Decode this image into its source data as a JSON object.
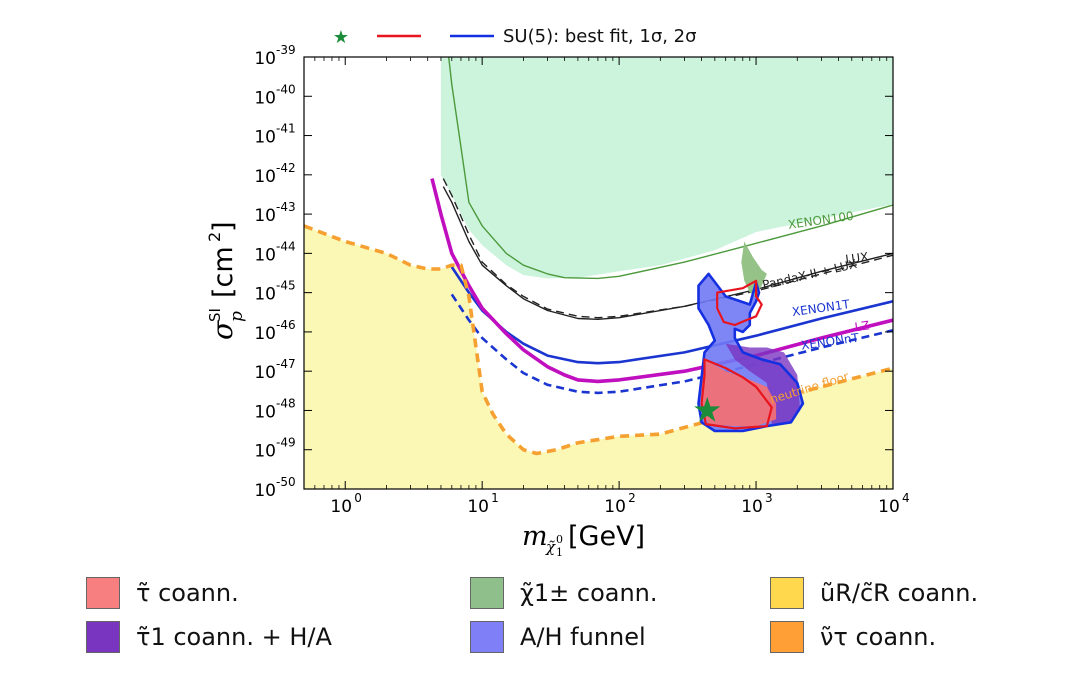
{
  "chart_data": {
    "type": "line",
    "xscale": "log",
    "yscale": "log",
    "xlim": [
      0.5,
      10000
    ],
    "ylim": [
      1e-50,
      1e-39
    ],
    "xlabel": "m_χ̃₁⁰ [GeV]",
    "ylabel": "σ_p^SI [cm²]",
    "x_ticks": [
      1,
      10,
      100,
      1000,
      10000
    ],
    "x_tick_labels": [
      {
        "base": "10",
        "exp": "0"
      },
      {
        "base": "10",
        "exp": "1"
      },
      {
        "base": "10",
        "exp": "2"
      },
      {
        "base": "10",
        "exp": "3"
      },
      {
        "base": "10",
        "exp": "4"
      }
    ],
    "y_ticks": [
      1e-39,
      1e-40,
      1e-41,
      1e-42,
      1e-43,
      1e-44,
      1e-45,
      1e-46,
      1e-47,
      1e-48,
      1e-49,
      1e-50
    ],
    "y_tick_labels": [
      {
        "base": "10",
        "exp": "-39"
      },
      {
        "base": "10",
        "exp": "-40"
      },
      {
        "base": "10",
        "exp": "-41"
      },
      {
        "base": "10",
        "exp": "-42"
      },
      {
        "base": "10",
        "exp": "-43"
      },
      {
        "base": "10",
        "exp": "-44"
      },
      {
        "base": "10",
        "exp": "-45"
      },
      {
        "base": "10",
        "exp": "-46"
      },
      {
        "base": "10",
        "exp": "-47"
      },
      {
        "base": "10",
        "exp": "-48"
      },
      {
        "base": "10",
        "exp": "-49"
      },
      {
        "base": "10",
        "exp": "-50"
      }
    ],
    "top_legend": {
      "label": "SU(5): best fit, 1σ, 2σ",
      "marker_color": "#1a8c3a",
      "line1_color": "#e8141e",
      "line2_color": "#1530e0"
    },
    "regions": [
      {
        "name": "excluded-region",
        "color": "#ccf3dc",
        "points": [
          [
            5,
            1e-39
          ],
          [
            10000,
            1e-39
          ],
          [
            10000,
            1.8e-43
          ],
          [
            1000,
            3.5e-44
          ],
          [
            500,
            1.2e-44
          ],
          [
            200,
            5e-45
          ],
          [
            100,
            3.5e-45
          ],
          [
            50,
            2.4e-45
          ],
          [
            30,
            2.3e-45
          ],
          [
            20,
            2.8e-45
          ],
          [
            15,
            5e-45
          ],
          [
            10,
            1.6e-44
          ],
          [
            8,
            4e-44
          ],
          [
            7,
            1e-43
          ],
          [
            6,
            3e-43
          ],
          [
            5,
            1e-42
          ]
        ]
      },
      {
        "name": "neutrino-floor-region",
        "color": "#fbf8b6",
        "points": [
          [
            0.5,
            5e-44
          ],
          [
            1,
            2e-44
          ],
          [
            2,
            1e-44
          ],
          [
            3,
            5e-45
          ],
          [
            4,
            4e-45
          ],
          [
            5,
            4e-45
          ],
          [
            6,
            5e-45
          ],
          [
            7,
            5e-45
          ],
          [
            8,
            8e-46
          ],
          [
            10,
            3e-48
          ],
          [
            12,
            8e-49
          ],
          [
            15,
            2.5e-49
          ],
          [
            20,
            1e-49
          ],
          [
            25,
            8e-50
          ],
          [
            35,
            1e-49
          ],
          [
            50,
            1.5e-49
          ],
          [
            100,
            2.2e-49
          ],
          [
            200,
            2.5e-49
          ],
          [
            500,
            6e-49
          ],
          [
            1000,
            1.5e-48
          ],
          [
            3000,
            4e-48
          ],
          [
            10000,
            1.2e-47
          ],
          [
            10000,
            1e-50
          ],
          [
            0.5,
            1e-50
          ]
        ]
      }
    ],
    "series": [
      {
        "name": "XENON100",
        "color": "#4c9a3c",
        "dash": "solid",
        "points": [
          [
            5.7,
            1e-39
          ],
          [
            6,
            2e-40
          ],
          [
            7,
            5e-42
          ],
          [
            8,
            2e-43
          ],
          [
            10,
            5e-44
          ],
          [
            15,
            1e-44
          ],
          [
            20,
            5e-45
          ],
          [
            30,
            3e-45
          ],
          [
            40,
            2.4e-45
          ],
          [
            70,
            2.3e-45
          ],
          [
            100,
            2.6e-45
          ],
          [
            300,
            6e-45
          ],
          [
            1000,
            1.8e-44
          ],
          [
            3000,
            5e-44
          ],
          [
            10000,
            1.7e-43
          ]
        ]
      },
      {
        "name": "LUX",
        "color": "#222222",
        "dash": "solid",
        "points": [
          [
            5.2,
            5e-43
          ],
          [
            6,
            2e-43
          ],
          [
            8,
            2e-44
          ],
          [
            10,
            5e-45
          ],
          [
            15,
            1.5e-45
          ],
          [
            20,
            7e-46
          ],
          [
            30,
            3.5e-46
          ],
          [
            50,
            2.2e-46
          ],
          [
            70,
            2.1e-46
          ],
          [
            100,
            2.3e-46
          ],
          [
            300,
            4.5e-46
          ],
          [
            1000,
            1.2e-45
          ],
          [
            3000,
            3.5e-45
          ],
          [
            10000,
            1e-44
          ]
        ]
      },
      {
        "name": "PandaX-II + LUX",
        "color": "#222222",
        "dash": "dashed",
        "points": [
          [
            5.2,
            8e-43
          ],
          [
            6,
            3e-43
          ],
          [
            8,
            3e-44
          ],
          [
            10,
            6e-45
          ],
          [
            15,
            1.6e-45
          ],
          [
            20,
            8e-46
          ],
          [
            30,
            3.8e-46
          ],
          [
            50,
            2.5e-46
          ],
          [
            70,
            2.3e-46
          ],
          [
            100,
            2.5e-46
          ],
          [
            300,
            4.5e-46
          ],
          [
            1000,
            1.1e-45
          ],
          [
            3000,
            3e-45
          ],
          [
            10000,
            9e-45
          ]
        ]
      },
      {
        "name": "XENON1T",
        "color": "#1a35d0",
        "dash": "solid",
        "points": [
          [
            6,
            4.5e-45
          ],
          [
            8,
            1e-45
          ],
          [
            10,
            3.5e-46
          ],
          [
            15,
            1e-46
          ],
          [
            20,
            5e-47
          ],
          [
            30,
            2.5e-47
          ],
          [
            50,
            1.7e-47
          ],
          [
            70,
            1.6e-47
          ],
          [
            100,
            1.7e-47
          ],
          [
            300,
            3e-47
          ],
          [
            1000,
            8e-47
          ],
          [
            3000,
            2.2e-46
          ],
          [
            10000,
            6e-46
          ]
        ]
      },
      {
        "name": "LZ",
        "color": "#c00fbf",
        "dash": "solid",
        "points": [
          [
            4.3,
            8e-43
          ],
          [
            5,
            1e-43
          ],
          [
            6,
            1e-44
          ],
          [
            8,
            1.5e-45
          ],
          [
            10,
            4e-46
          ],
          [
            15,
            9e-47
          ],
          [
            20,
            3.5e-47
          ],
          [
            30,
            1.3e-47
          ],
          [
            40,
            8e-48
          ],
          [
            50,
            6e-48
          ],
          [
            70,
            5.5e-48
          ],
          [
            100,
            6e-48
          ],
          [
            300,
            1e-47
          ],
          [
            1000,
            2.5e-47
          ],
          [
            3000,
            7e-47
          ],
          [
            10000,
            2e-46
          ]
        ]
      },
      {
        "name": "XENONnT",
        "color": "#1a35d0",
        "dash": "dashed",
        "points": [
          [
            6,
            9e-46
          ],
          [
            8,
            2e-46
          ],
          [
            10,
            7e-47
          ],
          [
            15,
            2e-47
          ],
          [
            20,
            9e-48
          ],
          [
            30,
            4.5e-48
          ],
          [
            50,
            3e-48
          ],
          [
            70,
            2.8e-48
          ],
          [
            100,
            3e-48
          ],
          [
            300,
            5.5e-48
          ],
          [
            1000,
            1.5e-47
          ],
          [
            3000,
            4e-47
          ],
          [
            10000,
            1.1e-46
          ]
        ]
      },
      {
        "name": "neutrino floor",
        "color": "#f5a030",
        "dash": "dashed",
        "points": [
          [
            0.5,
            5e-44
          ],
          [
            1,
            2e-44
          ],
          [
            2,
            1e-44
          ],
          [
            3,
            5e-45
          ],
          [
            4,
            4e-45
          ],
          [
            5,
            4e-45
          ],
          [
            6,
            5e-45
          ],
          [
            7,
            5e-45
          ],
          [
            8,
            8e-46
          ],
          [
            10,
            3e-48
          ],
          [
            12,
            8e-49
          ],
          [
            15,
            2.5e-49
          ],
          [
            20,
            1e-49
          ],
          [
            25,
            8e-50
          ],
          [
            35,
            1e-49
          ],
          [
            50,
            1.5e-49
          ],
          [
            100,
            2.2e-49
          ],
          [
            200,
            2.5e-49
          ],
          [
            500,
            6e-49
          ],
          [
            1000,
            1.5e-48
          ],
          [
            3000,
            4e-48
          ],
          [
            10000,
            1.2e-47
          ]
        ]
      }
    ],
    "curve_labels": [
      {
        "series": "XENON100",
        "text": "XENON100",
        "x": 3000,
        "y": 5.5e-44,
        "color": "#4c9a3c",
        "rotate": -8
      },
      {
        "series": "LUX",
        "text": "LUX",
        "x": 5500,
        "y": 6e-45,
        "color": "#222222",
        "rotate": -8
      },
      {
        "series": "PandaX-II + LUX",
        "text": "PandaX-II + LUX",
        "x": 2500,
        "y": 2.3e-45,
        "color": "#222222",
        "rotate": -13
      },
      {
        "series": "XENON1T",
        "text": "XENON1T",
        "x": 3000,
        "y": 3.2e-46,
        "color": "#1a35d0",
        "rotate": -8
      },
      {
        "series": "LZ",
        "text": "LZ",
        "x": 6000,
        "y": 1.1e-46,
        "color": "#c00fbf",
        "rotate": -8
      },
      {
        "series": "XENONnT",
        "text": "XENONnT",
        "x": 3500,
        "y": 4.5e-47,
        "color": "#1a35d0",
        "rotate": -8
      },
      {
        "series": "neutrino floor",
        "text": "neutrino floor",
        "x": 2500,
        "y": 3e-48,
        "color": "#f5a030",
        "rotate": -17
      }
    ],
    "fit_blobs": {
      "A/H funnel": {
        "color": "#7079f5",
        "opacity": 0.9,
        "points": [
          [
            450,
            3e-45
          ],
          [
            600,
            8e-46
          ],
          [
            900,
            5e-46
          ],
          [
            1000,
            1.8e-45
          ],
          [
            1050,
            1e-45
          ],
          [
            1000,
            6e-46
          ],
          [
            900,
            3e-46
          ],
          [
            900,
            1.5e-46
          ],
          [
            800,
            1e-46
          ],
          [
            700,
            1.2e-46
          ],
          [
            700,
            7e-47
          ],
          [
            800,
            3e-47
          ],
          [
            1100,
            2e-47
          ],
          [
            1500,
            1.5e-47
          ],
          [
            2000,
            5e-48
          ],
          [
            2200,
            1.5e-48
          ],
          [
            1800,
            5e-49
          ],
          [
            1200,
            4e-49
          ],
          [
            800,
            3e-49
          ],
          [
            500,
            3e-49
          ],
          [
            400,
            5e-49
          ],
          [
            380,
            1.5e-48
          ],
          [
            420,
            3e-47
          ],
          [
            500,
            6e-47
          ],
          [
            450,
            1.5e-46
          ],
          [
            380,
            4e-46
          ],
          [
            380,
            1.5e-45
          ]
        ]
      },
      "τ̃1 coann. + H/A": {
        "color": "#7a35c0",
        "opacity": 0.8,
        "points": [
          [
            600,
            5e-47
          ],
          [
            900,
            4e-47
          ],
          [
            1200,
            4e-47
          ],
          [
            1600,
            3e-47
          ],
          [
            2000,
            8e-48
          ],
          [
            2100,
            1e-48
          ],
          [
            1800,
            5e-49
          ],
          [
            1300,
            4.5e-49
          ],
          [
            1200,
            5e-48
          ],
          [
            900,
            1e-47
          ],
          [
            700,
            2e-47
          ]
        ]
      },
      "τ̃ coann.": {
        "color": "#f77070",
        "opacity": 0.9,
        "points": [
          [
            420,
            2e-47
          ],
          [
            600,
            1e-47
          ],
          [
            900,
            6e-48
          ],
          [
            1200,
            4e-48
          ],
          [
            1400,
            1.5e-48
          ],
          [
            1400,
            6e-49
          ],
          [
            1000,
            4e-49
          ],
          [
            700,
            4e-49
          ],
          [
            450,
            4.5e-49
          ],
          [
            400,
            1e-48
          ],
          [
            400,
            6e-48
          ]
        ]
      },
      "χ̃1± coann.": {
        "color": "#8fbf80",
        "opacity": 0.95,
        "points": [
          [
            820,
            2e-44
          ],
          [
            950,
            8e-45
          ],
          [
            1100,
            3.8e-45
          ],
          [
            1200,
            3e-45
          ],
          [
            1100,
            1.5e-45
          ],
          [
            1000,
            8e-46
          ],
          [
            900,
            1e-45
          ],
          [
            820,
            2e-45
          ],
          [
            780,
            6e-45
          ]
        ]
      },
      "red1": {
        "color": "#e8141e",
        "points": [
          [
            420,
            2e-47
          ],
          [
            600,
            1.2e-47
          ],
          [
            800,
            7e-48
          ],
          [
            1000,
            4e-48
          ],
          [
            1300,
            1.2e-48
          ],
          [
            1200,
            4e-49
          ],
          [
            700,
            3.5e-49
          ],
          [
            430,
            4.5e-49
          ],
          [
            400,
            1.5e-48
          ],
          [
            420,
            8e-48
          ]
        ]
      },
      "red2": {
        "color": "#e8141e",
        "points": [
          [
            520,
            1e-45
          ],
          [
            800,
            1.3e-45
          ],
          [
            1000,
            2e-45
          ],
          [
            1000,
            8e-46
          ],
          [
            1100,
            5e-46
          ],
          [
            1000,
            2.5e-46
          ],
          [
            850,
            2e-46
          ],
          [
            700,
            1.5e-46
          ],
          [
            580,
            1.8e-46
          ],
          [
            520,
            4e-46
          ]
        ]
      },
      "best_fit": {
        "x": 440,
        "y": 1e-48,
        "color": "#1a8c3a"
      }
    },
    "legend_bottom": [
      {
        "label": "τ̃ coann.",
        "color": "#f77f7f"
      },
      {
        "label": "χ̃1± coann.",
        "color": "#8fbf8a"
      },
      {
        "label": "ũR/c̃R coann.",
        "color": "#ffd84d"
      },
      {
        "label": "τ̃1 coann. + H/A",
        "color": "#7a35c0"
      },
      {
        "label": "A/H funnel",
        "color": "#7f7ff7"
      },
      {
        "label": "ν̃τ coann.",
        "color": "#ff9f35"
      }
    ]
  }
}
